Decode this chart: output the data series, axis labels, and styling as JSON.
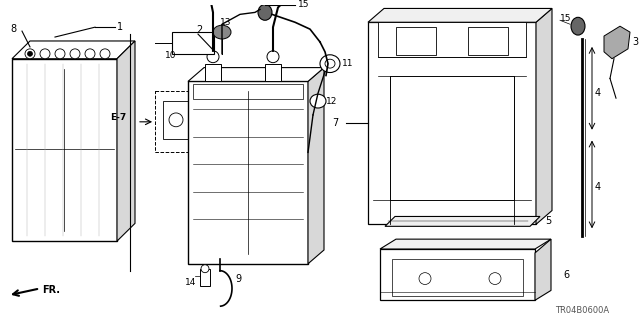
{
  "bg_color": "#ffffff",
  "line_color": "#000000",
  "diagram_code": "TR04B0600A"
}
